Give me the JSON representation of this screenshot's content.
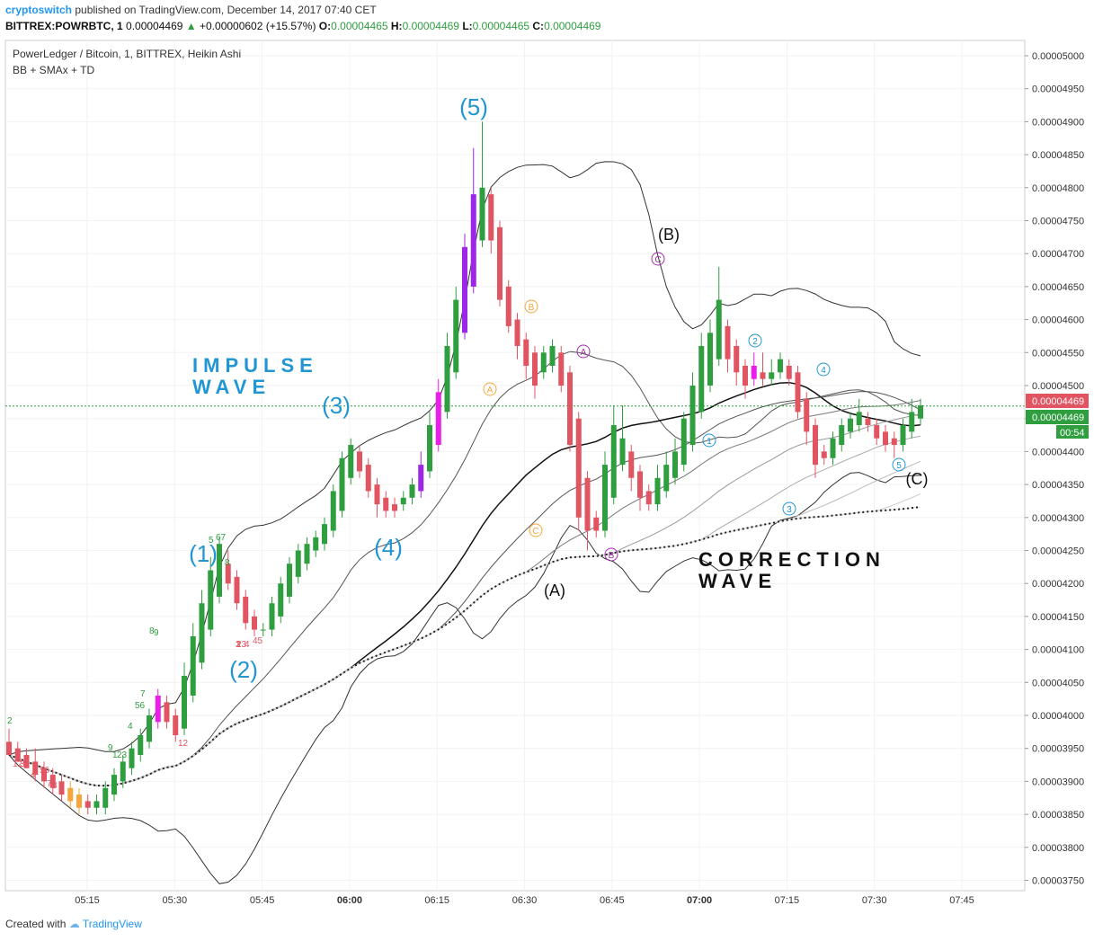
{
  "header": {
    "user": "cryptoswitch",
    "published": "published on TradingView.com, December 14, 2017 07:40 CET",
    "symbol": "BITTREX:POWRBTC, 1",
    "last": "0.00004469",
    "change": "+0.00000602 (+15.57%)",
    "o_label": "O:",
    "o_value": "0.00004465",
    "h_label": "H:",
    "h_value": "0.00004469",
    "l_label": "L:",
    "l_value": "0.00004465",
    "c_label": "C:",
    "c_value": "0.00004469"
  },
  "legend": {
    "title": "PowerLedger / Bitcoin, 1, BITTREX, Heikin Ashi",
    "indicators": "BB + SMAx + TD"
  },
  "price_tags": {
    "current": "0.00004469",
    "current2": "0.00004469",
    "countdown": "00:54"
  },
  "footer": {
    "created_with": "Created with",
    "brand": "TradingView"
  },
  "colors": {
    "up": "#2e9e3f",
    "down": "#e05561",
    "purple": "#9c27e6",
    "magenta": "#e91ee9",
    "orange": "#f7a53a",
    "blue": "#2196d3",
    "grid": "#f2f2f2"
  },
  "chart_data": {
    "type": "candlestick",
    "style": "Heikin Ashi",
    "x_ticks": [
      "05:15",
      "05:30",
      "05:45",
      "06:00",
      "06:15",
      "06:30",
      "06:45",
      "07:00",
      "07:15",
      "07:30",
      "07:45"
    ],
    "y_ticks": [
      "0.00005000",
      "0.00004950",
      "0.00004900",
      "0.00004850",
      "0.00004800",
      "0.00004750",
      "0.00004700",
      "0.00004650",
      "0.00004600",
      "0.00004550",
      "0.00004500",
      "0.00004450",
      "0.00004400",
      "0.00004350",
      "0.00004300",
      "0.00004250",
      "0.00004200",
      "0.00004150",
      "0.00004100",
      "0.00004050",
      "0.00004000",
      "0.00003950",
      "0.00003900",
      "0.00003850",
      "0.00003800",
      "0.00003750"
    ],
    "y_range": [
      3.72e-05,
      5.02e-05
    ],
    "current_price": 4.469e-05,
    "grid": true,
    "candles": [
      [
        3.96e-05,
        3.98e-05,
        3.95e-05,
        3.94e-05
      ],
      [
        3.95e-05,
        3.96e-05,
        3.93e-05,
        3.93e-05
      ],
      [
        3.94e-05,
        3.95e-05,
        3.92e-05,
        3.92e-05
      ],
      [
        3.93e-05,
        3.95e-05,
        3.9e-05,
        3.91e-05
      ],
      [
        3.92e-05,
        3.93e-05,
        3.89e-05,
        3.9e-05
      ],
      [
        3.91e-05,
        3.92e-05,
        3.88e-05,
        3.89e-05
      ],
      [
        3.9e-05,
        3.91e-05,
        3.87e-05,
        3.88e-05
      ],
      [
        3.89e-05,
        3.9e-05,
        3.86e-05,
        3.87e-05
      ],
      [
        3.88e-05,
        3.89e-05,
        3.85e-05,
        3.86e-05
      ],
      [
        3.87e-05,
        3.88e-05,
        3.85e-05,
        3.86e-05
      ],
      [
        3.86e-05,
        3.88e-05,
        3.85e-05,
        3.87e-05
      ],
      [
        3.86e-05,
        3.9e-05,
        3.85e-05,
        3.89e-05
      ],
      [
        3.88e-05,
        3.92e-05,
        3.87e-05,
        3.91e-05
      ],
      [
        3.9e-05,
        3.94e-05,
        3.89e-05,
        3.93e-05
      ],
      [
        3.92e-05,
        3.96e-05,
        3.91e-05,
        3.95e-05
      ],
      [
        3.94e-05,
        3.98e-05,
        3.93e-05,
        3.97e-05
      ],
      [
        3.96e-05,
        4.01e-05,
        3.95e-05,
        4e-05
      ],
      [
        3.99e-05,
        4.04e-05,
        3.98e-05,
        4.03e-05
      ],
      [
        4.02e-05,
        4.03e-05,
        3.98e-05,
        3.99e-05
      ],
      [
        4e-05,
        4.01e-05,
        3.96e-05,
        3.97e-05
      ],
      [
        3.98e-05,
        4.08e-05,
        3.97e-05,
        4.06e-05
      ],
      [
        4.03e-05,
        4.14e-05,
        4.02e-05,
        4.12e-05
      ],
      [
        4.08e-05,
        4.19e-05,
        4.07e-05,
        4.17e-05
      ],
      [
        4.13e-05,
        4.24e-05,
        4.12e-05,
        4.22e-05
      ],
      [
        4.18e-05,
        4.27e-05,
        4.17e-05,
        4.26e-05
      ],
      [
        4.23e-05,
        4.25e-05,
        4.19e-05,
        4.2e-05
      ],
      [
        4.21e-05,
        4.22e-05,
        4.16e-05,
        4.17e-05
      ],
      [
        4.18e-05,
        4.19e-05,
        4.13e-05,
        4.14e-05
      ],
      [
        4.15e-05,
        4.16e-05,
        4.12e-05,
        4.13e-05
      ],
      [
        4.13e-05,
        4.14e-05,
        4.12e-05,
        4.13e-05
      ],
      [
        4.13e-05,
        4.18e-05,
        4.12e-05,
        4.17e-05
      ],
      [
        4.15e-05,
        4.21e-05,
        4.14e-05,
        4.2e-05
      ],
      [
        4.18e-05,
        4.24e-05,
        4.17e-05,
        4.23e-05
      ],
      [
        4.21e-05,
        4.26e-05,
        4.2e-05,
        4.25e-05
      ],
      [
        4.23e-05,
        4.27e-05,
        4.22e-05,
        4.26e-05
      ],
      [
        4.25e-05,
        4.28e-05,
        4.24e-05,
        4.27e-05
      ],
      [
        4.26e-05,
        4.3e-05,
        4.25e-05,
        4.29e-05
      ],
      [
        4.28e-05,
        4.35e-05,
        4.27e-05,
        4.34e-05
      ],
      [
        4.31e-05,
        4.4e-05,
        4.3e-05,
        4.39e-05
      ],
      [
        4.36e-05,
        4.42e-05,
        4.35e-05,
        4.41e-05
      ],
      [
        4.4e-05,
        4.41e-05,
        4.36e-05,
        4.37e-05
      ],
      [
        4.38e-05,
        4.39e-05,
        4.33e-05,
        4.34e-05
      ],
      [
        4.35e-05,
        4.36e-05,
        4.3e-05,
        4.32e-05
      ],
      [
        4.33e-05,
        4.34e-05,
        4.3e-05,
        4.31e-05
      ],
      [
        4.32e-05,
        4.33e-05,
        4.3e-05,
        4.31e-05
      ],
      [
        4.32e-05,
        4.34e-05,
        4.31e-05,
        4.33e-05
      ],
      [
        4.33e-05,
        4.36e-05,
        4.32e-05,
        4.35e-05
      ],
      [
        4.34e-05,
        4.4e-05,
        4.33e-05,
        4.38e-05
      ],
      [
        4.37e-05,
        4.46e-05,
        4.36e-05,
        4.44e-05
      ],
      [
        4.41e-05,
        4.51e-05,
        4.4e-05,
        4.49e-05
      ],
      [
        4.46e-05,
        4.58e-05,
        4.45e-05,
        4.56e-05
      ],
      [
        4.52e-05,
        4.65e-05,
        4.51e-05,
        4.63e-05
      ],
      [
        4.58e-05,
        4.73e-05,
        4.57e-05,
        4.71e-05
      ],
      [
        4.65e-05,
        4.86e-05,
        4.64e-05,
        4.79e-05
      ],
      [
        4.72e-05,
        4.9e-05,
        4.71e-05,
        4.8e-05
      ],
      [
        4.79e-05,
        4.8e-05,
        4.7e-05,
        4.72e-05
      ],
      [
        4.74e-05,
        4.75e-05,
        4.62e-05,
        4.63e-05
      ],
      [
        4.65e-05,
        4.66e-05,
        4.58e-05,
        4.59e-05
      ],
      [
        4.6e-05,
        4.61e-05,
        4.54e-05,
        4.56e-05
      ],
      [
        4.57e-05,
        4.58e-05,
        4.51e-05,
        4.53e-05
      ],
      [
        4.55e-05,
        4.56e-05,
        4.48e-05,
        4.5e-05
      ],
      [
        4.52e-05,
        4.56e-05,
        4.51e-05,
        4.55e-05
      ],
      [
        4.53e-05,
        4.57e-05,
        4.52e-05,
        4.56e-05
      ],
      [
        4.55e-05,
        4.56e-05,
        4.49e-05,
        4.5e-05
      ],
      [
        4.52e-05,
        4.53e-05,
        4.4e-05,
        4.41e-05
      ],
      [
        4.45e-05,
        4.46e-05,
        4.28e-05,
        4.3e-05
      ],
      [
        4.36e-05,
        4.37e-05,
        4.25e-05,
        4.28e-05
      ],
      [
        4.3e-05,
        4.31e-05,
        4.27e-05,
        4.28e-05
      ],
      [
        4.28e-05,
        4.4e-05,
        4.27e-05,
        4.38e-05
      ],
      [
        4.33e-05,
        4.47e-05,
        4.32e-05,
        4.44e-05
      ],
      [
        4.38e-05,
        4.47e-05,
        4.37e-05,
        4.42e-05
      ],
      [
        4.4e-05,
        4.41e-05,
        4.34e-05,
        4.36e-05
      ],
      [
        4.37e-05,
        4.38e-05,
        4.31e-05,
        4.33e-05
      ],
      [
        4.34e-05,
        4.35e-05,
        4.31e-05,
        4.32e-05
      ],
      [
        4.32e-05,
        4.38e-05,
        4.31e-05,
        4.36e-05
      ],
      [
        4.34e-05,
        4.4e-05,
        4.33e-05,
        4.38e-05
      ],
      [
        4.36e-05,
        4.42e-05,
        4.35e-05,
        4.4e-05
      ],
      [
        4.38e-05,
        4.46e-05,
        4.37e-05,
        4.45e-05
      ],
      [
        4.41e-05,
        4.52e-05,
        4.4e-05,
        4.5e-05
      ],
      [
        4.46e-05,
        4.58e-05,
        4.45e-05,
        4.56e-05
      ],
      [
        4.5e-05,
        4.6e-05,
        4.49e-05,
        4.58e-05
      ],
      [
        4.54e-05,
        4.68e-05,
        4.53e-05,
        4.63e-05
      ],
      [
        4.59e-05,
        4.6e-05,
        4.52e-05,
        4.54e-05
      ],
      [
        4.56e-05,
        4.57e-05,
        4.5e-05,
        4.52e-05
      ],
      [
        4.53e-05,
        4.54e-05,
        4.48e-05,
        4.5e-05
      ],
      [
        4.51e-05,
        4.55e-05,
        4.5e-05,
        4.53e-05
      ],
      [
        4.52e-05,
        4.55e-05,
        4.5e-05,
        4.51e-05
      ],
      [
        4.51e-05,
        4.54e-05,
        4.5e-05,
        4.52e-05
      ],
      [
        4.52e-05,
        4.55e-05,
        4.51e-05,
        4.54e-05
      ],
      [
        4.53e-05,
        4.54e-05,
        4.5e-05,
        4.51e-05
      ],
      [
        4.52e-05,
        4.53e-05,
        4.45e-05,
        4.46e-05
      ],
      [
        4.48e-05,
        4.49e-05,
        4.41e-05,
        4.43e-05
      ],
      [
        4.44e-05,
        4.45e-05,
        4.36e-05,
        4.38e-05
      ],
      [
        4.4e-05,
        4.41e-05,
        4.38e-05,
        4.39e-05
      ],
      [
        4.39e-05,
        4.43e-05,
        4.38e-05,
        4.42e-05
      ],
      [
        4.41e-05,
        4.45e-05,
        4.4e-05,
        4.44e-05
      ],
      [
        4.43e-05,
        4.46e-05,
        4.42e-05,
        4.45e-05
      ],
      [
        4.44e-05,
        4.48e-05,
        4.43e-05,
        4.46e-05
      ],
      [
        4.45e-05,
        4.46e-05,
        4.43e-05,
        4.44e-05
      ],
      [
        4.44e-05,
        4.45e-05,
        4.41e-05,
        4.42e-05
      ],
      [
        4.43e-05,
        4.44e-05,
        4.4e-05,
        4.41e-05
      ],
      [
        4.42e-05,
        4.43e-05,
        4.39e-05,
        4.41e-05
      ],
      [
        4.41e-05,
        4.45e-05,
        4.4e-05,
        4.44e-05
      ],
      [
        4.43e-05,
        4.48e-05,
        4.42e-05,
        4.46e-05
      ],
      [
        4.45e-05,
        4.48e-05,
        4.44e-05,
        4.47e-05
      ]
    ],
    "candle_highlights": {
      "orange": [
        7,
        8
      ],
      "purple": [
        47,
        52,
        53
      ],
      "magenta": [
        17,
        49,
        85
      ]
    },
    "wave_labels": [
      "(1)",
      "(2)",
      "(3)",
      "(4)",
      "(5)",
      "(A)",
      "(B)",
      "(C)"
    ],
    "annotations": [
      "IMPULSE",
      "WAVE",
      "CORRECTION",
      "WAVE"
    ],
    "sub_wave_markers": [
      "A",
      "B",
      "C",
      "A",
      "B",
      "C",
      "1",
      "2",
      "3",
      "4",
      "5"
    ],
    "td_counts_sample": [
      "2",
      "12",
      "3",
      "4",
      "56",
      "7",
      "8",
      "9",
      "1",
      "23",
      "4",
      "56",
      "7",
      "8",
      "9",
      "12",
      "3",
      "4",
      "5",
      "67",
      "8",
      "1",
      "23",
      "45"
    ]
  }
}
